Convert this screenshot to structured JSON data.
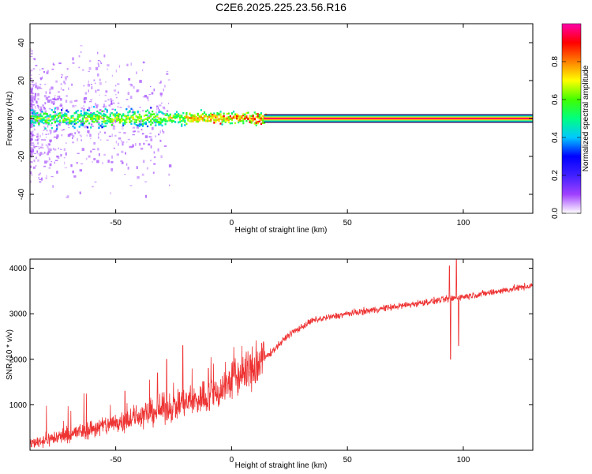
{
  "title": "C2E6.2025.225.23.56.R16",
  "chart_data": [
    {
      "type": "heatmap",
      "xlabel": "Height of straight line (km)",
      "ylabel": "Frequency (Hz)",
      "xlim": [
        -87,
        130
      ],
      "ylim": [
        -50,
        50
      ],
      "xticks": [
        "-50",
        "0",
        "50",
        "100"
      ],
      "yticks": [
        "40",
        "20",
        "0",
        "-20",
        "-40"
      ],
      "xtick_values": [
        -50,
        0,
        50,
        100
      ],
      "ytick_values": [
        40,
        20,
        0,
        -20,
        -40
      ],
      "colorbar": {
        "label": "Normalized spectral amplitude",
        "range": [
          0,
          1
        ],
        "ticks": [
          "0.0",
          "0.2",
          "0.4",
          "0.6",
          "0.8"
        ],
        "tick_values": [
          0,
          0.2,
          0.4,
          0.6,
          0.8
        ],
        "colormap": [
          "#ffffff",
          "#a040ff",
          "#4020ff",
          "#0000ff",
          "#00c8ff",
          "#00ff80",
          "#40ff00",
          "#ffff00",
          "#ff8000",
          "#ff0000",
          "#ff00aa"
        ]
      },
      "band": {
        "center_hz": 0,
        "scatter_until_km": 15,
        "steady_from_km": 14,
        "steady_amplitude": 1.0,
        "noisy_halfwidth_hz": 5,
        "steady_halfwidth_hz": 2
      }
    },
    {
      "type": "line",
      "xlabel": "Height of straight line (km)",
      "ylabel": "SNR (10 * v/v)",
      "xlim": [
        -87,
        130
      ],
      "ylim": [
        0,
        4200
      ],
      "xticks": [
        "-50",
        "0",
        "50",
        "100"
      ],
      "yticks": [
        "4000",
        "3000",
        "2000",
        "1000"
      ],
      "xtick_values": [
        -50,
        0,
        50,
        100
      ],
      "ytick_values": [
        4000,
        3000,
        2000,
        1000
      ],
      "color": "#ee3333",
      "trend": [
        {
          "x": -87,
          "y": 150
        },
        {
          "x": -70,
          "y": 350
        },
        {
          "x": -50,
          "y": 600
        },
        {
          "x": -30,
          "y": 900
        },
        {
          "x": -15,
          "y": 1100
        },
        {
          "x": -5,
          "y": 1300
        },
        {
          "x": 0,
          "y": 1550
        },
        {
          "x": 10,
          "y": 1800
        },
        {
          "x": 18,
          "y": 2200
        },
        {
          "x": 25,
          "y": 2550
        },
        {
          "x": 35,
          "y": 2850
        },
        {
          "x": 50,
          "y": 3000
        },
        {
          "x": 70,
          "y": 3150
        },
        {
          "x": 90,
          "y": 3300
        },
        {
          "x": 110,
          "y": 3450
        },
        {
          "x": 130,
          "y": 3620
        }
      ],
      "spikes": [
        {
          "x": -46,
          "y": 1300
        },
        {
          "x": -32,
          "y": 1700
        },
        {
          "x": -28,
          "y": 2000
        },
        {
          "x": -21,
          "y": 2300
        },
        {
          "x": -10,
          "y": 1800
        },
        {
          "x": 94,
          "y": 4050
        },
        {
          "x": 94.5,
          "y": 2000
        },
        {
          "x": 97,
          "y": 4200
        },
        {
          "x": 98,
          "y": 2300
        }
      ]
    }
  ]
}
